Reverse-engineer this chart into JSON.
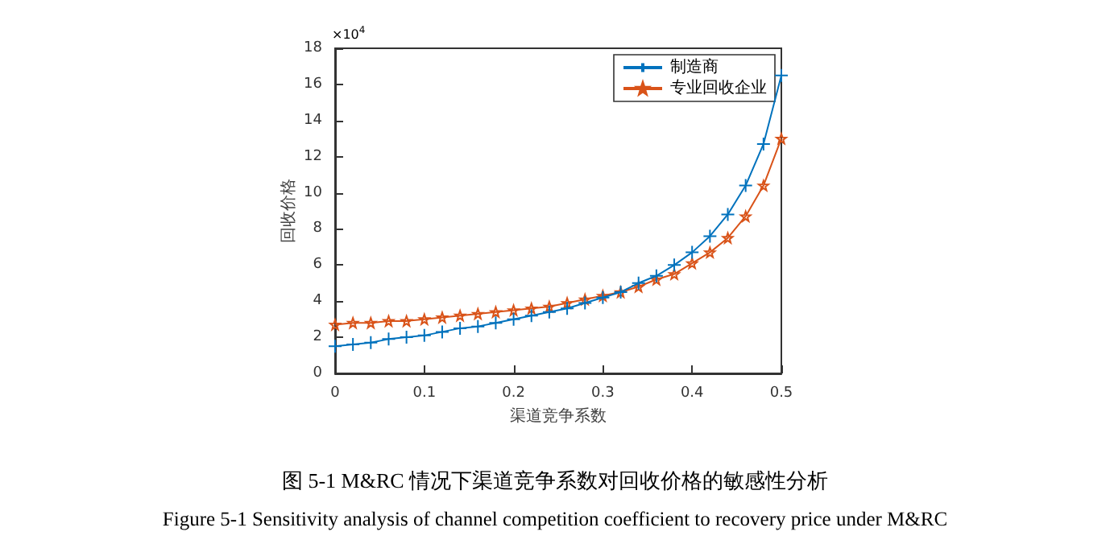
{
  "chart_data": {
    "type": "line",
    "title": "图 5-1 M&RC 情况下渠道竞争系数对回收价格的敏感性分析",
    "subtitle": "Figure 5-1 Sensitivity analysis of channel competition coefficient to recovery price under M&RC",
    "xlabel": "渠道竞争系数",
    "ylabel": "回收价格",
    "annotations": [
      "×10$^{4}$"
    ],
    "x": [
      0,
      0.02,
      0.04,
      0.06,
      0.08,
      0.1,
      0.12,
      0.14,
      0.16,
      0.18,
      0.2,
      0.22,
      0.24,
      0.26,
      0.28,
      0.3,
      0.32,
      0.34,
      0.36,
      0.38,
      0.4,
      0.42,
      0.44,
      0.46,
      0.48,
      0.5
    ],
    "series": [
      {
        "name": "制造商",
        "color": "#0072bd",
        "marker": "cross",
        "values": [
          1.5,
          1.6,
          1.7,
          1.9,
          2.0,
          2.1,
          2.3,
          2.5,
          2.6,
          2.8,
          3.0,
          3.2,
          3.4,
          3.6,
          3.9,
          4.2,
          4.5,
          5.0,
          5.4,
          6.0,
          6.7,
          7.6,
          8.8,
          10.4,
          12.7,
          16.5
        ]
      },
      {
        "name": "专业回收企业",
        "color": "#d95319",
        "marker": "star",
        "values": [
          2.7,
          2.8,
          2.8,
          2.9,
          2.9,
          3.0,
          3.1,
          3.2,
          3.3,
          3.4,
          3.5,
          3.6,
          3.7,
          3.9,
          4.1,
          4.3,
          4.5,
          4.8,
          5.2,
          5.5,
          6.1,
          6.7,
          7.5,
          8.7,
          10.4,
          13.0
        ]
      }
    ],
    "xlim": [
      0,
      0.5
    ],
    "xticks": [
      0,
      0.1,
      0.2,
      0.3,
      0.4,
      0.5
    ],
    "ylim": [
      0,
      18
    ],
    "yticks": [
      0,
      2,
      4,
      6,
      8,
      10,
      12,
      14,
      16,
      18
    ],
    "grid": false,
    "legend": "top right",
    "line_style": "solid"
  }
}
